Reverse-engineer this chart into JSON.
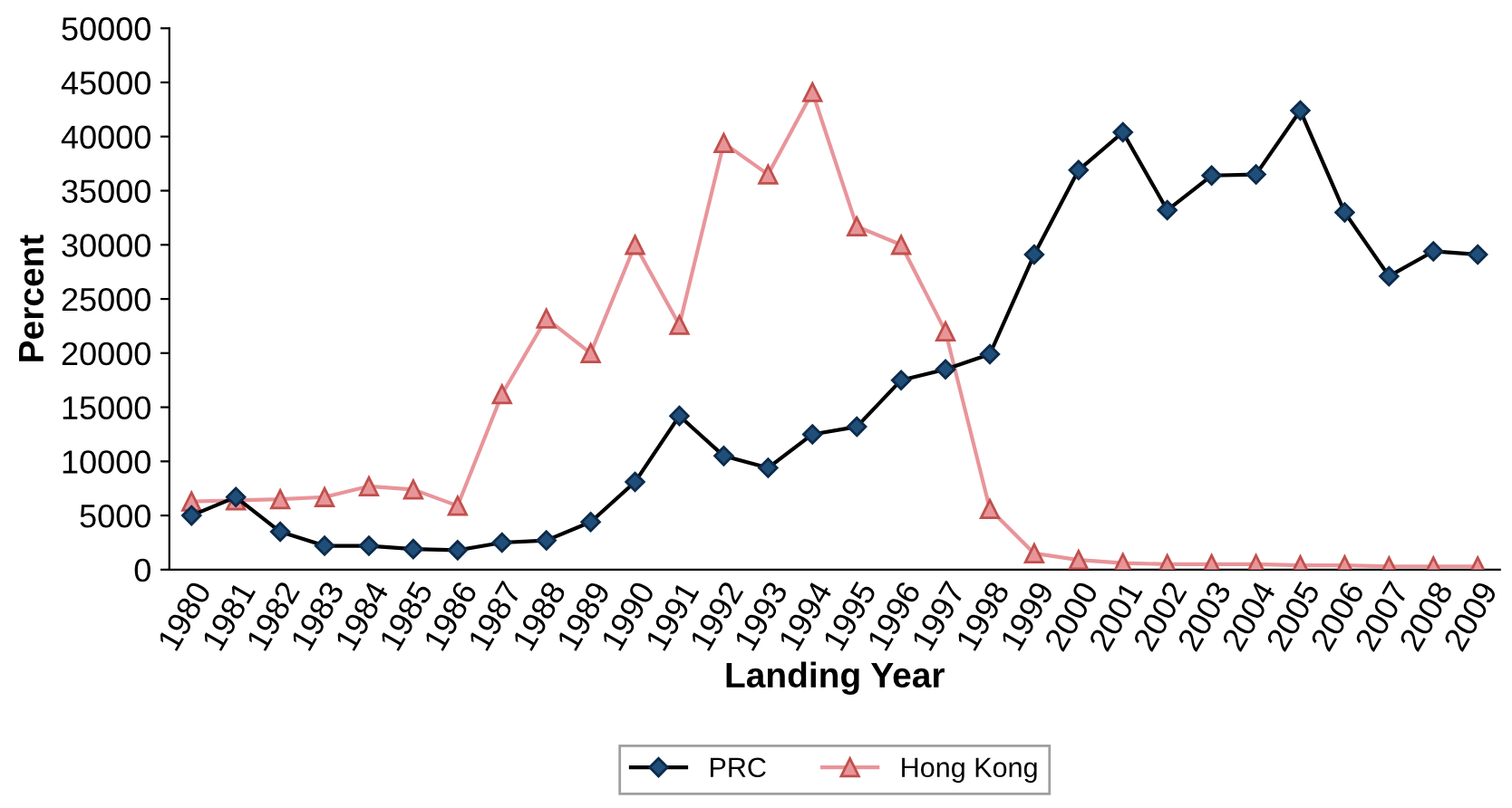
{
  "chart_data": {
    "type": "line",
    "xlabel": "Landing Year",
    "ylabel": "Percent",
    "categories": [
      "1980",
      "1981",
      "1982",
      "1983",
      "1984",
      "1985",
      "1986",
      "1987",
      "1988",
      "1989",
      "1990",
      "1991",
      "1992",
      "1993",
      "1994",
      "1995",
      "1996",
      "1997",
      "1998",
      "1999",
      "2000",
      "2001",
      "2002",
      "2003",
      "2004",
      "2005",
      "2006",
      "2007",
      "2008",
      "2009"
    ],
    "series": [
      {
        "name": "PRC",
        "color": "#000000",
        "marker": "diamond",
        "values": [
          5000,
          6700,
          3500,
          2200,
          2200,
          1900,
          1800,
          2500,
          2700,
          4400,
          8100,
          14200,
          10500,
          9400,
          12500,
          13200,
          17500,
          18500,
          19900,
          29100,
          36900,
          40400,
          33200,
          36400,
          36500,
          42400,
          33000,
          27100,
          29400,
          29100
        ]
      },
      {
        "name": "Hong Kong",
        "color": "#e8959a",
        "marker": "triangle",
        "values": [
          6300,
          6400,
          6500,
          6700,
          7700,
          7400,
          5900,
          16200,
          23200,
          20000,
          30000,
          22600,
          39400,
          36500,
          44100,
          31700,
          30000,
          22000,
          5600,
          1500,
          900,
          600,
          500,
          500,
          500,
          400,
          400,
          300,
          300,
          300
        ]
      }
    ],
    "ylim": [
      0,
      50000
    ],
    "yticks": [
      0,
      5000,
      10000,
      15000,
      20000,
      25000,
      30000,
      35000,
      40000,
      45000,
      50000
    ],
    "grid": false,
    "legend": "bottom",
    "line_style": "solid"
  }
}
